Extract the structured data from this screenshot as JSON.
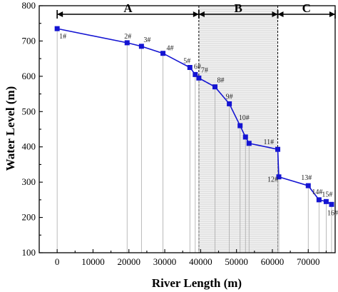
{
  "chart_data": {
    "type": "line",
    "title": "",
    "xlabel": "River Length (m)",
    "ylabel": "Water Level (m)",
    "xlim": [
      -5000,
      77500
    ],
    "ylim": [
      100,
      800
    ],
    "x_ticks": [
      0,
      10000,
      20000,
      30000,
      40000,
      50000,
      60000,
      70000
    ],
    "y_ticks": [
      100,
      200,
      300,
      400,
      500,
      600,
      700,
      800
    ],
    "grid": false,
    "series": [
      {
        "color": "#1414d2",
        "marker": "square",
        "labels": [
          "1#",
          "2#",
          "3#",
          "4#",
          "5#",
          "6#",
          "7#",
          "8#",
          "9#",
          "10#",
          "11#",
          "12#",
          "13#",
          "14#",
          "15#",
          "16#"
        ],
        "x": [
          0,
          19500,
          23500,
          29500,
          37000,
          38500,
          39500,
          44000,
          48000,
          51000,
          52500,
          53500,
          61500,
          61800,
          70000,
          73000,
          75000,
          76500
        ],
        "y": [
          735,
          695,
          685,
          665,
          625,
          605,
          595,
          570,
          522,
          460,
          428,
          410,
          393,
          315,
          290,
          250,
          245,
          237
        ],
        "point_labels": [
          "1#",
          "2#",
          "3#",
          "4#",
          "5#",
          "6#",
          "7#",
          "8#",
          "9#",
          "10#",
          "",
          "",
          "11#",
          "12#",
          "13#",
          "14#",
          "15#",
          "16#"
        ]
      }
    ],
    "regions": [
      {
        "label": "A",
        "x_start": 0,
        "x_end": 39500,
        "shaded": false
      },
      {
        "label": "B",
        "x_start": 39500,
        "x_end": 61500,
        "shaded": true
      },
      {
        "label": "C",
        "x_start": 61500,
        "x_end": 77500,
        "shaded": false
      }
    ],
    "colors": {
      "series": "#1414d2",
      "drop_lines": "#a9a9a9",
      "hatch": "#b8b8b8"
    }
  }
}
